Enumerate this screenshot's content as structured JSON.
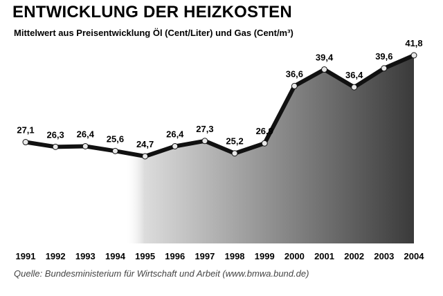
{
  "title": "ENTWICKLUNG DER HEIZKOSTEN",
  "subtitle": "Mittelwert aus Preisentwicklung Öl (Cent/Liter) und Gas (Cent/m³)",
  "source": "Quelle: Bundesministerium für Wirtschaft und Arbeit (www.bmwa.bund.de)",
  "colors": {
    "line": "#111111",
    "marker": "#e8e8e8",
    "area_light": "#dcdcdc",
    "area_dark": "#3a3a3a"
  },
  "chart_data": {
    "type": "area",
    "title": "ENTWICKLUNG DER HEIZKOSTEN",
    "subtitle": "Mittelwert aus Preisentwicklung Öl (Cent/Liter) und Gas (Cent/m³)",
    "categories": [
      "1991",
      "1992",
      "1993",
      "1994",
      "1995",
      "1996",
      "1997",
      "1998",
      "1999",
      "2000",
      "2001",
      "2002",
      "2003",
      "2004"
    ],
    "values": [
      27.1,
      26.3,
      26.4,
      25.6,
      24.7,
      26.4,
      27.3,
      25.2,
      26.9,
      36.6,
      39.4,
      36.4,
      39.6,
      41.8
    ],
    "value_labels": [
      "27,1",
      "26,3",
      "26,4",
      "25,6",
      "24,7",
      "26,4",
      "27,3",
      "25,2",
      "26,9",
      "36,6",
      "39,4",
      "36,4",
      "39,6",
      "41,8"
    ],
    "xlabel": "",
    "ylabel": "",
    "legend": "none",
    "grid": false
  }
}
